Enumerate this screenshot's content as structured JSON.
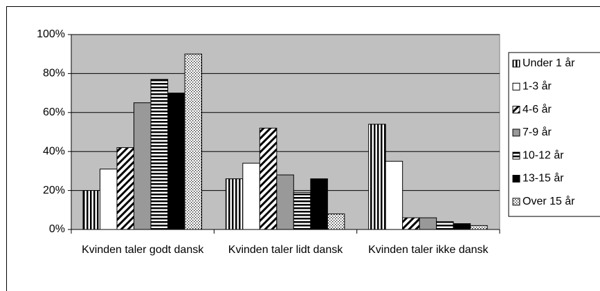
{
  "chart_data": {
    "type": "bar",
    "categories": [
      "Kvinden taler godt dansk",
      "Kvinden taler lidt dansk",
      "Kvinden taler ikke dansk"
    ],
    "series": [
      {
        "name": "Under 1 år",
        "color": "#ffffff",
        "pattern": "vertical",
        "values": [
          20,
          26,
          54
        ]
      },
      {
        "name": "1-3 år",
        "color": "#ffffff",
        "pattern": "none",
        "values": [
          31,
          34,
          35
        ]
      },
      {
        "name": "4-6 år",
        "color": "#ffffff",
        "pattern": "diagonal",
        "values": [
          42,
          52,
          6
        ]
      },
      {
        "name": "7-9 år",
        "color": "#999999",
        "pattern": "none",
        "values": [
          65,
          28,
          6
        ]
      },
      {
        "name": "10-12 år",
        "color": "#ffffff",
        "pattern": "horizontal",
        "values": [
          77,
          19,
          4
        ]
      },
      {
        "name": "13-15 år",
        "color": "#000000",
        "pattern": "none",
        "values": [
          70,
          26,
          3
        ]
      },
      {
        "name": "Over 15 år",
        "color": "#ffffff",
        "pattern": "dots",
        "values": [
          90,
          8,
          2
        ]
      }
    ],
    "ylim": [
      0,
      100
    ],
    "yticks": [
      {
        "value": 0,
        "label": "0%"
      },
      {
        "value": 20,
        "label": "20%"
      },
      {
        "value": 40,
        "label": "40%"
      },
      {
        "value": 60,
        "label": "60%"
      },
      {
        "value": 80,
        "label": "80%"
      },
      {
        "value": 100,
        "label": "100%"
      }
    ],
    "grid": true,
    "legend": "right",
    "plot_background": "#c0c0c0"
  }
}
